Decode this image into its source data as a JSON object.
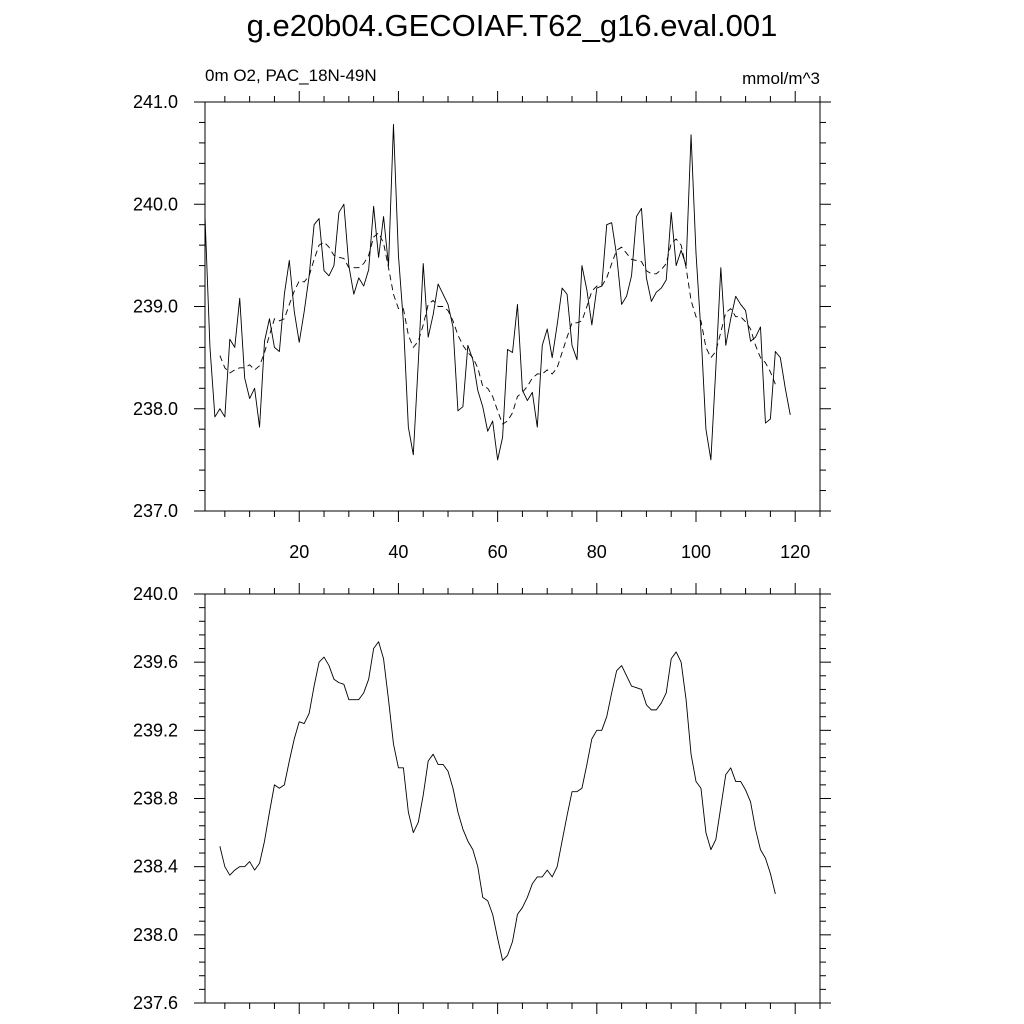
{
  "title": "g.e20b04.GECOIAF.T62_g16.eval.001",
  "left_label": "0m O2, PAC_18N-49N",
  "right_label": "mmol/m^3",
  "chart_data": [
    {
      "type": "line",
      "xlim": [
        1,
        125
      ],
      "ylim": [
        237.0,
        241.0
      ],
      "x_ticks": [
        20,
        40,
        60,
        80,
        100,
        120
      ],
      "x_tick_labels": [
        "20",
        "40",
        "60",
        "80",
        "100",
        "120"
      ],
      "y_ticks": [
        237.0,
        238.0,
        239.0,
        240.0,
        241.0
      ],
      "y_tick_labels": [
        "237.0",
        "238.0",
        "239.0",
        "240.0",
        "241.0"
      ],
      "series": [
        {
          "style": "solid",
          "x_start": 1,
          "values": [
            239.88,
            238.6,
            237.92,
            238.0,
            237.92,
            238.68,
            238.6,
            239.08,
            238.3,
            238.1,
            238.2,
            237.82,
            238.66,
            238.88,
            238.6,
            238.56,
            239.12,
            239.45,
            238.95,
            238.65,
            238.95,
            239.3,
            239.8,
            239.86,
            239.35,
            239.3,
            239.4,
            239.92,
            240.0,
            239.4,
            239.12,
            239.28,
            239.2,
            239.36,
            239.98,
            239.48,
            239.88,
            239.4,
            240.78,
            239.5,
            238.85,
            237.82,
            237.55,
            238.45,
            239.42,
            238.7,
            238.92,
            239.22,
            239.12,
            239.02,
            238.8,
            237.98,
            238.02,
            238.62,
            238.48,
            238.18,
            238.02,
            237.78,
            237.88,
            237.5,
            237.72,
            238.58,
            238.55,
            239.02,
            238.18,
            238.08,
            238.16,
            237.82,
            238.62,
            238.78,
            238.5,
            238.82,
            239.18,
            239.12,
            238.62,
            238.48,
            239.4,
            239.16,
            238.82,
            239.18,
            239.2,
            239.8,
            239.82,
            239.5,
            239.02,
            239.1,
            239.3,
            239.88,
            239.96,
            239.28,
            239.05,
            239.14,
            239.18,
            239.26,
            239.92,
            239.4,
            239.55,
            239.4,
            240.68,
            239.52,
            238.75,
            237.8,
            237.5,
            238.4,
            239.38,
            238.62,
            238.88,
            239.1,
            239.02,
            238.96,
            238.66,
            238.7,
            238.8,
            237.86,
            237.9,
            238.56,
            238.5,
            238.2,
            237.94
          ]
        },
        {
          "style": "dashed",
          "x_start": 4,
          "values": [
            238.52,
            238.4,
            238.35,
            238.38,
            238.4,
            238.4,
            238.43,
            238.38,
            238.42,
            238.55,
            238.72,
            238.88,
            238.86,
            238.88,
            239.02,
            239.15,
            239.25,
            239.24,
            239.3,
            239.46,
            239.6,
            239.63,
            239.58,
            239.5,
            239.48,
            239.47,
            239.38,
            239.38,
            239.38,
            239.42,
            239.5,
            239.68,
            239.72,
            239.62,
            239.38,
            239.12,
            238.98,
            238.98,
            238.72,
            238.6,
            238.66,
            238.82,
            239.02,
            239.06,
            239.0,
            239.0,
            238.96,
            238.86,
            238.72,
            238.62,
            238.55,
            238.5,
            238.4,
            238.22,
            238.2,
            238.12,
            237.98,
            237.85,
            237.88,
            237.96,
            238.12,
            238.16,
            238.22,
            238.3,
            238.34,
            238.34,
            238.38,
            238.34,
            238.4,
            238.55,
            238.7,
            238.84,
            238.84,
            238.86,
            239.0,
            239.15,
            239.2,
            239.2,
            239.28,
            239.42,
            239.55,
            239.58,
            239.52,
            239.46,
            239.45,
            239.44,
            239.35,
            239.32,
            239.32,
            239.36,
            239.42,
            239.62,
            239.66,
            239.6,
            239.38,
            239.06,
            238.9,
            238.86,
            238.6,
            238.5,
            238.56,
            238.75,
            238.94,
            238.98,
            238.9,
            238.9,
            238.85,
            238.78,
            238.62,
            238.5,
            238.45,
            238.36,
            238.24
          ]
        }
      ]
    },
    {
      "type": "line",
      "xlim": [
        1,
        125
      ],
      "ylim": [
        237.6,
        240.0
      ],
      "x_ticks": [
        20,
        40,
        60,
        80,
        100,
        120
      ],
      "x_tick_labels": [
        "",
        "",
        "",
        "",
        "",
        ""
      ],
      "y_ticks": [
        237.6,
        238.0,
        238.4,
        238.8,
        239.2,
        239.6,
        240.0
      ],
      "y_tick_labels": [
        "237.6",
        "238.0",
        "238.4",
        "238.8",
        "239.2",
        "239.6",
        "240.0"
      ],
      "series": [
        {
          "style": "solid",
          "x_start": 4,
          "values": [
            238.52,
            238.4,
            238.35,
            238.38,
            238.4,
            238.4,
            238.43,
            238.38,
            238.42,
            238.55,
            238.72,
            238.88,
            238.86,
            238.88,
            239.02,
            239.15,
            239.25,
            239.24,
            239.3,
            239.46,
            239.6,
            239.63,
            239.58,
            239.5,
            239.48,
            239.47,
            239.38,
            239.38,
            239.38,
            239.42,
            239.5,
            239.68,
            239.72,
            239.62,
            239.38,
            239.12,
            238.98,
            238.98,
            238.72,
            238.6,
            238.66,
            238.82,
            239.02,
            239.06,
            239.0,
            239.0,
            238.96,
            238.86,
            238.72,
            238.62,
            238.55,
            238.5,
            238.4,
            238.22,
            238.2,
            238.12,
            237.98,
            237.85,
            237.88,
            237.96,
            238.12,
            238.16,
            238.22,
            238.3,
            238.34,
            238.34,
            238.38,
            238.34,
            238.4,
            238.55,
            238.7,
            238.84,
            238.84,
            238.86,
            239.0,
            239.15,
            239.2,
            239.2,
            239.28,
            239.42,
            239.55,
            239.58,
            239.52,
            239.46,
            239.45,
            239.44,
            239.35,
            239.32,
            239.32,
            239.36,
            239.42,
            239.62,
            239.66,
            239.6,
            239.38,
            239.06,
            238.9,
            238.86,
            238.6,
            238.5,
            238.56,
            238.75,
            238.94,
            238.98,
            238.9,
            238.9,
            238.85,
            238.78,
            238.62,
            238.5,
            238.45,
            238.36,
            238.24
          ]
        }
      ]
    }
  ]
}
